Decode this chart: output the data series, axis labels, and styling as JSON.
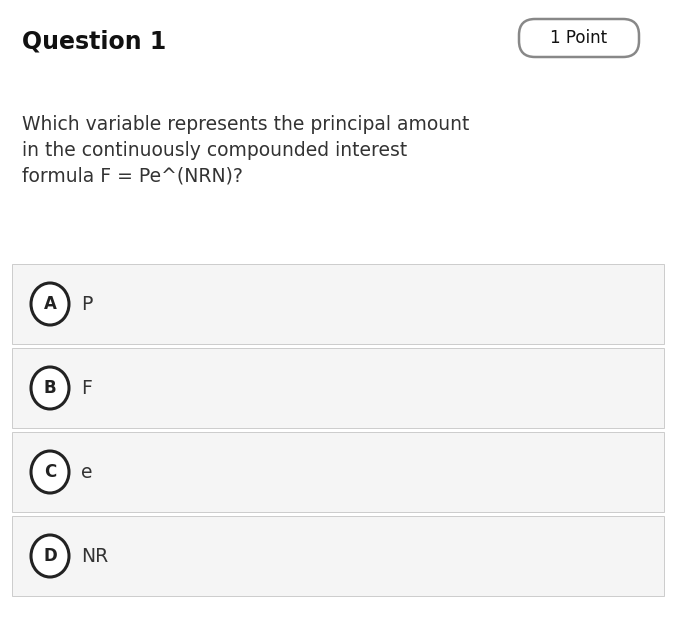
{
  "title": "Question 1",
  "points_label": "1 Point",
  "question_text": [
    "Which variable represents the principal amount",
    "in the continuously compounded interest",
    "formula F = Pe^(NRN)?"
  ],
  "options": [
    {
      "letter": "A",
      "text": "P"
    },
    {
      "letter": "B",
      "text": "F"
    },
    {
      "letter": "C",
      "text": "e"
    },
    {
      "letter": "D",
      "text": "NR"
    }
  ],
  "bg_color": "#ffffff",
  "option_bg_color": "#f5f5f5",
  "option_border_color": "#cccccc",
  "title_color": "#111111",
  "text_color": "#333333",
  "circle_edge_color": "#222222",
  "circle_fill": "#ffffff",
  "points_border_color": "#888888",
  "title_fontsize": 17,
  "points_fontsize": 12,
  "question_fontsize": 13.5,
  "option_fontsize": 13.5,
  "letter_fontsize": 12
}
